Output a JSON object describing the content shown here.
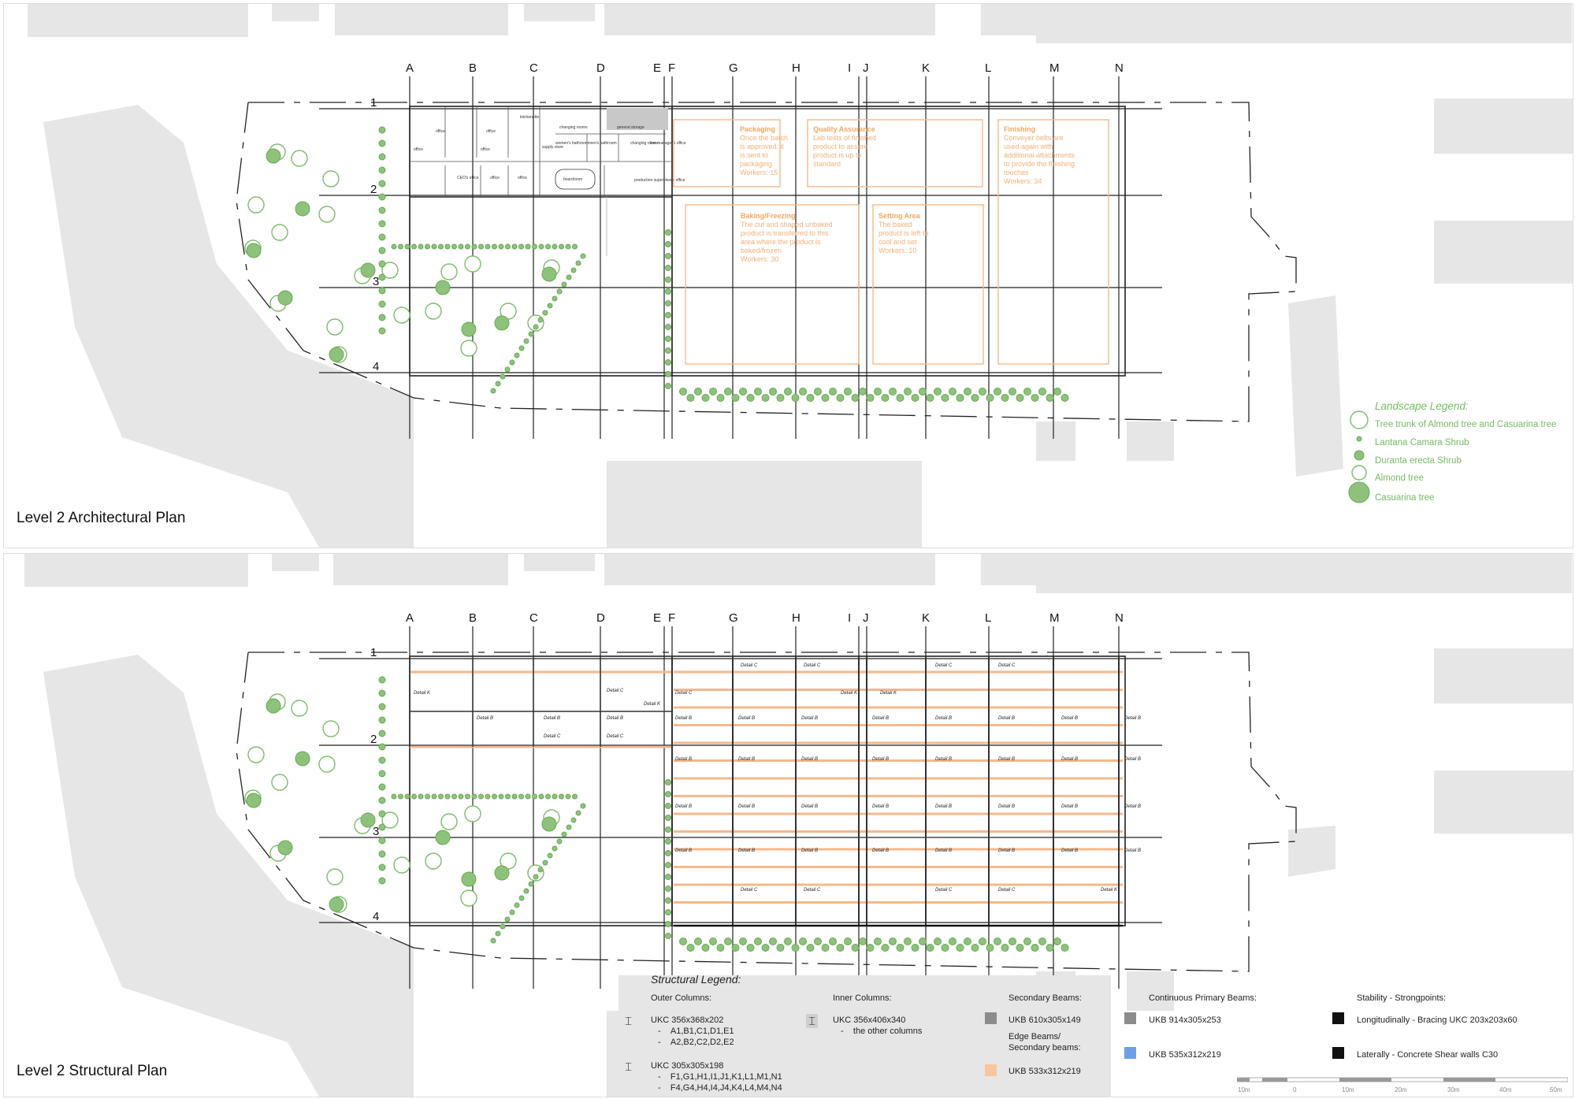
{
  "architectural_plan": {
    "title": "Level 2 Architectural Plan",
    "grid_columns": [
      "A",
      "B",
      "C",
      "D",
      "E",
      "F",
      "G",
      "H",
      "I",
      "J",
      "K",
      "L",
      "M",
      "N"
    ],
    "grid_rows": [
      "1",
      "2",
      "3",
      "4"
    ],
    "zones": [
      {
        "name": "Packaging",
        "lines": [
          "Once the batch",
          "is approved, it",
          "is sent to",
          "packaging",
          "Workers: 15"
        ]
      },
      {
        "name": "Quality Assurance",
        "lines": [
          "Lab tests of finished",
          "product to assure",
          "product is up to",
          "standard"
        ]
      },
      {
        "name": "Finishing",
        "lines": [
          "Conveyer belts are",
          "used again with",
          "additional attachments",
          "to provide the finishing",
          "touches",
          "Workers: 34"
        ]
      },
      {
        "name": "Baking/Freezing",
        "lines": [
          "The cut and shaped unbaked",
          "product is transferred to this",
          "area where the product is",
          "baked/frozen",
          "Workers: 30"
        ]
      },
      {
        "name": "Setting Area",
        "lines": [
          "The baked",
          "product is left to",
          "cool and set",
          "Workers: 10"
        ]
      }
    ],
    "rooms": [
      "office",
      "office",
      "kitchenette",
      "changing rooms",
      "general storage",
      "office",
      "office",
      "supply store",
      "women's bathroom",
      "men's bathroom",
      "changing rooms",
      "line manager's office",
      "CEO's office",
      "office",
      "office",
      "boardroom",
      "production supervisor's office"
    ],
    "landscape_legend": {
      "title": "Landscape Legend:",
      "items": [
        "Tree trunk of Almond tree and Casuarina tree",
        "Lantana Camara Shrub",
        "Duranta erecta Shrub",
        "Almond tree",
        "Casuarina tree"
      ]
    }
  },
  "structural_plan": {
    "title": "Level 2 Structural Plan",
    "grid_columns": [
      "A",
      "B",
      "C",
      "D",
      "E",
      "F",
      "G",
      "H",
      "I",
      "J",
      "K",
      "L",
      "M",
      "N"
    ],
    "grid_rows": [
      "1",
      "2",
      "3",
      "4"
    ],
    "detail_labels": {
      "b": "Detail B",
      "c": "Detail C",
      "k": "Detail K"
    },
    "legend": {
      "title": "Structural Legend:",
      "outer_columns": {
        "heading": "Outer Columns:",
        "groups": [
          {
            "section": "UKC 356x368x202",
            "items": [
              "A1,B1,C1,D1,E1",
              "A2,B2,C2,D2,E2"
            ]
          },
          {
            "section": "UKC 305x305x198",
            "items": [
              "F1,G1,H1,I1,J1,K1,L1,M1,N1",
              "F4,G4,H4,I4,J4,K4,L4,M4,N4"
            ]
          }
        ]
      },
      "inner_columns": {
        "heading": "Inner Columns:",
        "section": "UKC 356x406x340",
        "items": [
          "the other columns"
        ]
      },
      "secondary_beams": {
        "heading": "Secondary Beams:",
        "section": "UKB 610x305x149",
        "color": "#8c8c8c"
      },
      "edge_beams": {
        "heading_1": "Edge Beams/",
        "heading_2": "Secondary beams:",
        "section": "UKB 533x312x219",
        "color": "#f9c59c"
      },
      "primary_beams": {
        "heading": "Continuous Primary Beams:",
        "items": [
          {
            "section": "UKB 914x305x253",
            "color": "#8c8c8c"
          },
          {
            "section": "UKB 535x312x219",
            "color": "#6d9ee8"
          }
        ]
      },
      "stability": {
        "heading": "Stability - Strongpoints:",
        "items": [
          {
            "label": "Longitudinally - Bracing UKC 203x203x60",
            "color": "#111111"
          },
          {
            "label": "Laterally - Concrete Shear walls C30",
            "color": "#111111"
          }
        ]
      }
    },
    "scale_bar": [
      "10m",
      "0",
      "10m",
      "20m",
      "30m",
      "40m",
      "50m"
    ]
  },
  "colors": {
    "context_buildings": "#e6e6e6",
    "landscape": "#8ec27a",
    "zones": "#f4b98a"
  },
  "icons": {
    "column_symbol": "i-beam-icon"
  }
}
